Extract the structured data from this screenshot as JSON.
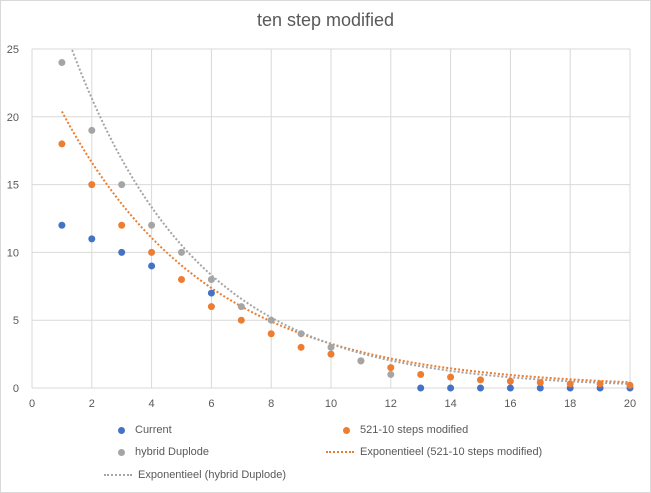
{
  "chart_data": {
    "type": "scatter",
    "title": "ten step modified",
    "xlabel": "",
    "ylabel": "",
    "xlim": [
      0,
      20
    ],
    "ylim": [
      0,
      25
    ],
    "xticks": [
      0,
      2,
      4,
      6,
      8,
      10,
      12,
      14,
      16,
      18,
      20
    ],
    "yticks": [
      0,
      5,
      10,
      15,
      20,
      25
    ],
    "grid": true,
    "legend_position": "bottom",
    "series": [
      {
        "name": "Current",
        "color": "#4472c4",
        "x": [
          1,
          2,
          3,
          4,
          6,
          13,
          14,
          15,
          16,
          17,
          18,
          19,
          20
        ],
        "y": [
          12,
          11,
          10,
          9,
          7,
          0,
          0,
          0,
          0,
          0,
          0,
          0,
          0
        ]
      },
      {
        "name": "521-10 steps modified",
        "color": "#ed7d31",
        "x": [
          1,
          2,
          3,
          4,
          5,
          6,
          7,
          8,
          9,
          10,
          11,
          12,
          13,
          14,
          15,
          16,
          17,
          18,
          19,
          20
        ],
        "y": [
          18,
          15,
          12,
          10,
          8,
          6,
          5,
          4,
          3,
          2.5,
          2,
          1.5,
          1,
          0.8,
          0.6,
          0.5,
          0.4,
          0.3,
          0.3,
          0.2
        ]
      },
      {
        "name": "hybrid Duplode",
        "color": "#a5a5a5",
        "x": [
          1,
          2,
          3,
          4,
          5,
          6,
          7,
          8,
          9,
          10,
          11,
          12
        ],
        "y": [
          24,
          19,
          15,
          12,
          10,
          8,
          6,
          5,
          4,
          3,
          2,
          1
        ]
      }
    ],
    "trendlines": [
      {
        "name": "Exponentieel (521-10 steps modified)",
        "color": "#ed7d31",
        "a": 25.0,
        "b": 0.2035,
        "x_start": 1
      },
      {
        "name": "Exponentieel (hybrid Duplode)",
        "color": "#a5a5a5",
        "a": 34.2,
        "b": 0.2355,
        "x_start": 1.25
      }
    ]
  }
}
